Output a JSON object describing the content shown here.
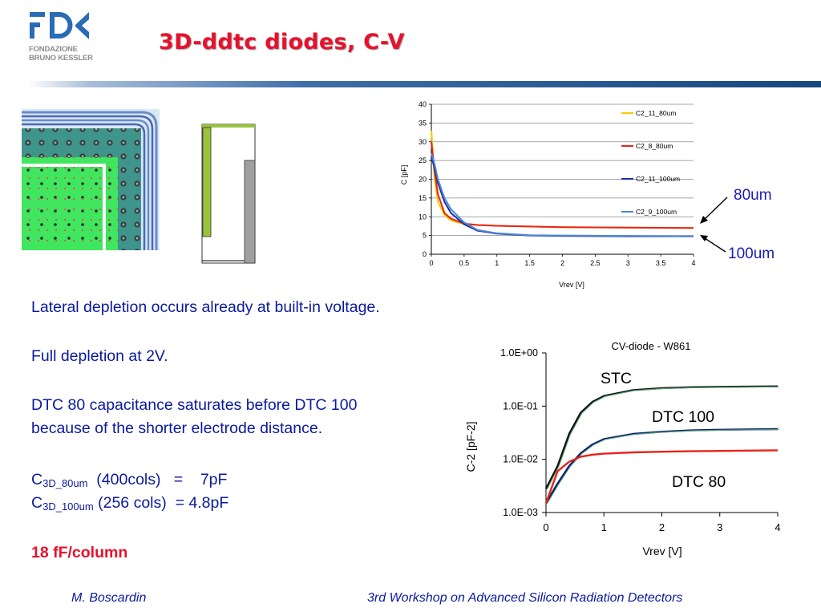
{
  "header": {
    "title": "3D-ddtc diodes, C-V",
    "logo_text_1": "FONDAZIONE",
    "logo_text_2": "BRUNO KESSLER",
    "logo_mark": "FBK"
  },
  "body": {
    "line1": "Lateral depletion occurs already at built-in voltage.",
    "line2": "Full depletion at 2V.",
    "line3a": "DTC 80 capacitance saturates before DTC 100",
    "line3b": "because of the shorter electrode distance.",
    "cap1_prefix": "C",
    "cap1_sub": "3D_80um",
    "cap1_rest": "  (400cols)   =    7pF",
    "cap2_prefix": "C",
    "cap2_sub": "3D_100um",
    "cap2_rest": " (256 cols)  = 4.8pF",
    "highlight": "18 fF/column"
  },
  "annotations": {
    "label_80": "80um",
    "label_100": "100um"
  },
  "footer": {
    "author": "M. Boscardin",
    "event": "3rd Workshop on Advanced Silicon Radiation Detectors"
  },
  "chart_data": [
    {
      "type": "line",
      "title": "",
      "xlabel": "Vrev [V]",
      "ylabel": "C [pF]",
      "xlim": [
        0,
        4
      ],
      "ylim": [
        0,
        40
      ],
      "xticks": [
        "0",
        "0.5",
        "1",
        "1.5",
        "2",
        "2.5",
        "3",
        "3.5",
        "4"
      ],
      "yticks": [
        "0",
        "5",
        "10",
        "15",
        "20",
        "25",
        "30",
        "35",
        "40"
      ],
      "grid": "horizontal",
      "legend": "right",
      "series": [
        {
          "name": "C2_11_80um",
          "color": "#f2c800",
          "x": [
            0,
            0.05,
            0.1,
            0.2,
            0.3,
            0.5,
            0.7,
            1,
            1.5,
            2,
            3,
            4
          ],
          "values": [
            33,
            20,
            14,
            10.5,
            9,
            8,
            7.8,
            7.6,
            7.4,
            7.2,
            7.1,
            7.0
          ]
        },
        {
          "name": "C2_8_80um",
          "color": "#e8231a",
          "x": [
            0,
            0.05,
            0.1,
            0.2,
            0.3,
            0.5,
            0.7,
            1,
            1.5,
            2,
            3,
            4
          ],
          "values": [
            30,
            22,
            16,
            11,
            9.5,
            8.2,
            7.8,
            7.6,
            7.4,
            7.2,
            7.1,
            7.0
          ]
        },
        {
          "name": "C2_11_100um",
          "color": "#1a2ea6",
          "x": [
            0,
            0.05,
            0.1,
            0.2,
            0.3,
            0.5,
            0.7,
            1,
            1.5,
            2,
            3,
            4
          ],
          "values": [
            26,
            23,
            19,
            14,
            11,
            8,
            6.3,
            5.5,
            5.0,
            4.9,
            4.8,
            4.8
          ]
        },
        {
          "name": "C2_9_100um",
          "color": "#4d86d6",
          "x": [
            0,
            0.05,
            0.1,
            0.2,
            0.3,
            0.5,
            0.7,
            1,
            1.5,
            2,
            3,
            4
          ],
          "values": [
            27,
            24,
            20,
            15,
            12,
            8.5,
            6.5,
            5.6,
            5.1,
            5.0,
            4.9,
            4.8
          ]
        }
      ]
    },
    {
      "type": "line",
      "title": "CV-diode - W861",
      "xlabel": "Vrev [V]",
      "ylabel": "C-2 [pF-2]",
      "yscale": "log",
      "xlim": [
        0,
        4
      ],
      "ylim": [
        0.001,
        1
      ],
      "xticks": [
        "0",
        "1",
        "2",
        "3",
        "4"
      ],
      "yticks": [
        "1.0E-03",
        "1.0E-02",
        "1.0E-01",
        "1.0E+00"
      ],
      "series": [
        {
          "name": "STC",
          "color": "#111111",
          "x": [
            0,
            0.2,
            0.4,
            0.6,
            0.8,
            1,
            1.5,
            2,
            2.5,
            3,
            4
          ],
          "values": [
            0.0028,
            0.0075,
            0.03,
            0.075,
            0.12,
            0.155,
            0.2,
            0.218,
            0.226,
            0.23,
            0.235
          ]
        },
        {
          "name": "DTC 100",
          "color": "#0d1f6e",
          "x": [
            0,
            0.2,
            0.4,
            0.6,
            0.8,
            1,
            1.5,
            2,
            2.5,
            3,
            4
          ],
          "values": [
            0.0015,
            0.0035,
            0.0075,
            0.013,
            0.019,
            0.024,
            0.03,
            0.033,
            0.035,
            0.036,
            0.037
          ]
        },
        {
          "name": "DTC 80",
          "color": "#e8231a",
          "x": [
            0,
            0.2,
            0.4,
            0.6,
            0.8,
            1,
            1.5,
            2,
            2.5,
            3,
            4
          ],
          "values": [
            0.0015,
            0.006,
            0.009,
            0.0112,
            0.0122,
            0.0128,
            0.0135,
            0.0139,
            0.0142,
            0.0144,
            0.0148
          ]
        }
      ]
    }
  ]
}
